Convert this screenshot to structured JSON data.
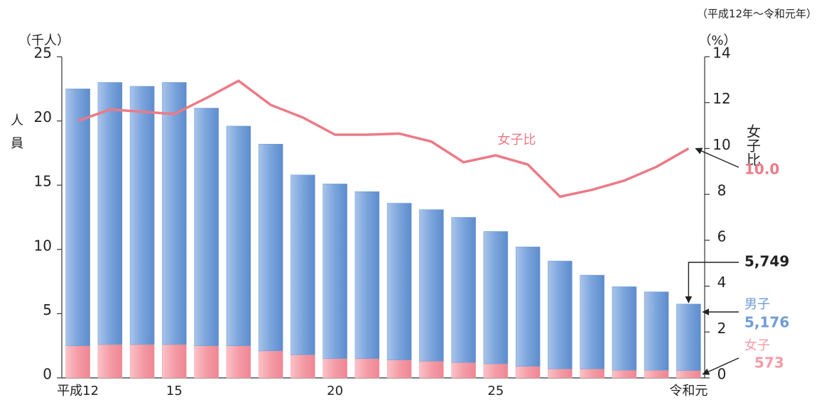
{
  "chart_data": {
    "type": "stacked_bar_line",
    "subtitle": "（平成12年～令和元年）",
    "y_unit": "（千人）",
    "y2_unit": "（%）",
    "y_label": "人員",
    "y2_label": "女子比",
    "categories": [
      "平成12",
      null,
      null,
      "15",
      null,
      null,
      null,
      null,
      "20",
      null,
      null,
      null,
      null,
      "25",
      null,
      null,
      null,
      null,
      null,
      "令和元"
    ],
    "series": [
      {
        "name": "女子",
        "color": "#f49ca6",
        "values": [
          2.5,
          2.6,
          2.6,
          2.6,
          2.5,
          2.5,
          2.1,
          1.8,
          1.5,
          1.5,
          1.4,
          1.3,
          1.2,
          1.1,
          0.9,
          0.7,
          0.7,
          0.6,
          0.6,
          0.573
        ],
        "value_labels": [
          null,
          null,
          null,
          null,
          null,
          null,
          null,
          null,
          null,
          null,
          null,
          null,
          null,
          null,
          null,
          null,
          null,
          null,
          null,
          "573"
        ]
      },
      {
        "name": "男子",
        "color": "#6e9bd6",
        "values": [
          20.0,
          20.4,
          20.1,
          20.4,
          18.5,
          17.1,
          16.1,
          14.0,
          13.6,
          13.0,
          12.2,
          11.8,
          11.3,
          10.3,
          9.3,
          8.4,
          7.3,
          6.5,
          6.1,
          5.176
        ],
        "value_labels": [
          null,
          null,
          null,
          null,
          null,
          null,
          null,
          null,
          null,
          null,
          null,
          null,
          null,
          null,
          null,
          null,
          null,
          null,
          null,
          "5,176"
        ]
      },
      {
        "name": "女子比",
        "color": "#ec7a86",
        "axis": "y2",
        "values": [
          11.2,
          11.7,
          11.6,
          11.5,
          12.2,
          12.95,
          11.9,
          11.35,
          10.6,
          10.6,
          10.65,
          10.3,
          9.4,
          9.7,
          9.3,
          7.9,
          8.2,
          8.6,
          9.2,
          10.0
        ],
        "value_labels": [
          null,
          null,
          null,
          null,
          null,
          null,
          null,
          null,
          null,
          null,
          null,
          null,
          null,
          null,
          null,
          null,
          null,
          null,
          null,
          "10.0"
        ]
      }
    ],
    "total_label": "5,749",
    "ylim": [
      0,
      25
    ],
    "yticks": [
      0,
      5,
      10,
      15,
      20,
      25
    ],
    "y2lim": [
      0,
      14
    ],
    "y2ticks": [
      0,
      2,
      4,
      6,
      8,
      10,
      12,
      14
    ]
  }
}
